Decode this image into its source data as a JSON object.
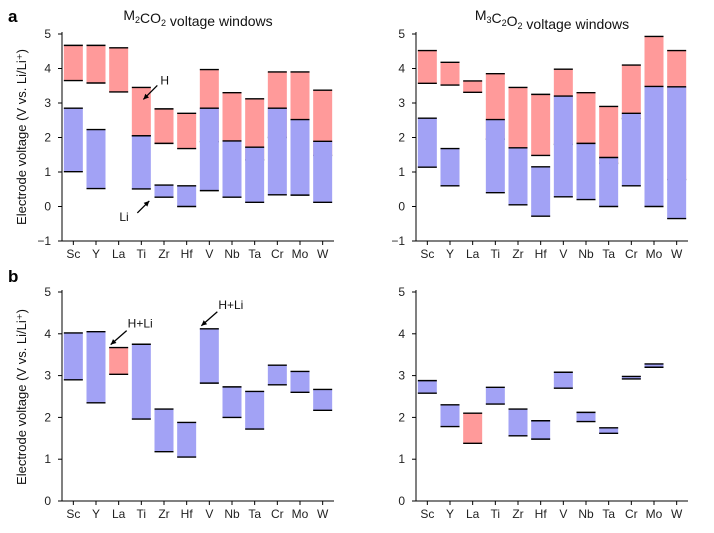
{
  "panel_labels": {
    "a": "a",
    "b": "b"
  },
  "y_axis_label": "Electrode voltage (V vs. Li/Li⁺)",
  "colors": {
    "H": "#ff9a9a",
    "Li": "#a2a2f5",
    "HLi": "#a2a2f5",
    "cap": "#000000",
    "axis": "#000000"
  },
  "chart_data": [
    {
      "id": "a-left",
      "type": "range-bar",
      "title": "M2CO2 voltage windows",
      "title_parts": [
        "M",
        "2",
        "CO",
        "2",
        " voltage windows"
      ],
      "categories": [
        "Sc",
        "Y",
        "La",
        "Ti",
        "Zr",
        "Hf",
        "V",
        "Nb",
        "Ta",
        "Cr",
        "Mo",
        "W"
      ],
      "ylim": [
        -1,
        5
      ],
      "yticks": [
        -1,
        0,
        1,
        2,
        3,
        4,
        5
      ],
      "ylabel": "Electrode voltage (V vs. Li/Li+)",
      "series": [
        {
          "name": "H",
          "ranges": [
            [
              3.65,
              4.67
            ],
            [
              3.58,
              4.67
            ],
            [
              3.32,
              4.6
            ],
            [
              2.05,
              3.45
            ],
            [
              1.83,
              2.83
            ],
            [
              1.68,
              2.7
            ],
            [
              1.88,
              3.97
            ],
            [
              1.8,
              3.3
            ],
            [
              1.35,
              3.12
            ],
            [
              2.0,
              3.9
            ],
            [
              1.88,
              3.9
            ],
            [
              1.48,
              3.37
            ]
          ]
        },
        {
          "name": "Li",
          "ranges": [
            [
              1.01,
              2.85
            ],
            [
              0.52,
              2.23
            ],
            null,
            [
              0.51,
              2.05
            ],
            [
              0.27,
              0.62
            ],
            [
              0.0,
              0.6
            ],
            [
              0.46,
              2.85
            ],
            [
              0.27,
              1.9
            ],
            [
              0.12,
              1.72
            ],
            [
              0.34,
              2.85
            ],
            [
              0.33,
              2.52
            ],
            [
              0.12,
              1.89
            ]
          ]
        }
      ],
      "annotations": [
        {
          "text": "H",
          "category": "Ti",
          "series": "H"
        },
        {
          "text": "Li",
          "category": "Ti",
          "series": "Li"
        }
      ]
    },
    {
      "id": "a-right",
      "type": "range-bar",
      "title": "M3C2O2 voltage windows",
      "title_parts": [
        "M",
        "3",
        "C",
        "2",
        "O",
        "2",
        " voltage windows"
      ],
      "categories": [
        "Sc",
        "Y",
        "La",
        "Ti",
        "Zr",
        "Hf",
        "V",
        "Nb",
        "Ta",
        "Cr",
        "Mo",
        "W"
      ],
      "ylim": [
        -1,
        5
      ],
      "yticks": [
        -1,
        0,
        1,
        2,
        3,
        4,
        5
      ],
      "series": [
        {
          "name": "H",
          "ranges": [
            [
              3.57,
              4.52
            ],
            [
              3.52,
              4.18
            ],
            [
              3.31,
              3.64
            ],
            [
              1.95,
              3.85
            ],
            [
              1.65,
              3.45
            ],
            [
              1.48,
              3.25
            ],
            [
              1.8,
              3.98
            ],
            [
              1.75,
              3.3
            ],
            [
              1.25,
              2.9
            ],
            [
              2.55,
              4.1
            ],
            [
              1.48,
              4.93
            ],
            [
              0.78,
              4.52
            ]
          ]
        },
        {
          "name": "Li",
          "ranges": [
            [
              1.14,
              2.56
            ],
            [
              0.6,
              1.68
            ],
            null,
            [
              0.4,
              2.52
            ],
            [
              0.05,
              1.7
            ],
            [
              -0.28,
              1.15
            ],
            [
              0.28,
              3.2
            ],
            [
              0.2,
              1.83
            ],
            [
              0.0,
              1.42
            ],
            [
              0.6,
              2.7
            ],
            [
              0.0,
              3.48
            ],
            [
              -0.35,
              3.47
            ]
          ]
        }
      ]
    },
    {
      "id": "b-left",
      "type": "range-bar",
      "categories": [
        "Sc",
        "Y",
        "La",
        "Ti",
        "Zr",
        "Hf",
        "V",
        "Nb",
        "Ta",
        "Cr",
        "Mo",
        "W"
      ],
      "ylim": [
        0,
        5
      ],
      "yticks": [
        0,
        1,
        2,
        3,
        4,
        5
      ],
      "ylabel": "Electrode voltage (V vs. Li/Li+)",
      "series": [
        {
          "name": "H+Li",
          "color_by_category": {
            "La": "H"
          },
          "ranges": [
            [
              2.9,
              4.02
            ],
            [
              2.35,
              4.05
            ],
            [
              3.03,
              3.67
            ],
            [
              1.96,
              3.75
            ],
            [
              1.18,
              2.2
            ],
            [
              1.05,
              1.88
            ],
            [
              2.82,
              4.12
            ],
            [
              2.0,
              2.73
            ],
            [
              1.72,
              2.62
            ],
            [
              2.78,
              3.25
            ],
            [
              2.6,
              3.1
            ],
            [
              2.17,
              2.67
            ]
          ]
        }
      ],
      "annotations": [
        {
          "text": "H+Li",
          "category": "La"
        },
        {
          "text": "H+Li",
          "category": "V"
        }
      ]
    },
    {
      "id": "b-right",
      "type": "range-bar",
      "categories": [
        "Sc",
        "Y",
        "La",
        "Ti",
        "Zr",
        "Hf",
        "V",
        "Nb",
        "Ta",
        "Cr",
        "Mo",
        "W"
      ],
      "ylim": [
        0,
        5
      ],
      "yticks": [
        0,
        1,
        2,
        3,
        4,
        5
      ],
      "series": [
        {
          "name": "H+Li",
          "color_by_category": {
            "La": "H"
          },
          "ranges": [
            [
              2.58,
              2.88
            ],
            [
              1.78,
              2.3
            ],
            [
              1.38,
              2.1
            ],
            [
              2.32,
              2.72
            ],
            [
              1.56,
              2.2
            ],
            [
              1.48,
              1.92
            ],
            [
              2.7,
              3.08
            ],
            [
              1.9,
              2.12
            ],
            [
              1.62,
              1.75
            ],
            [
              2.92,
              2.98
            ],
            [
              3.2,
              3.28
            ],
            null
          ]
        }
      ]
    }
  ]
}
